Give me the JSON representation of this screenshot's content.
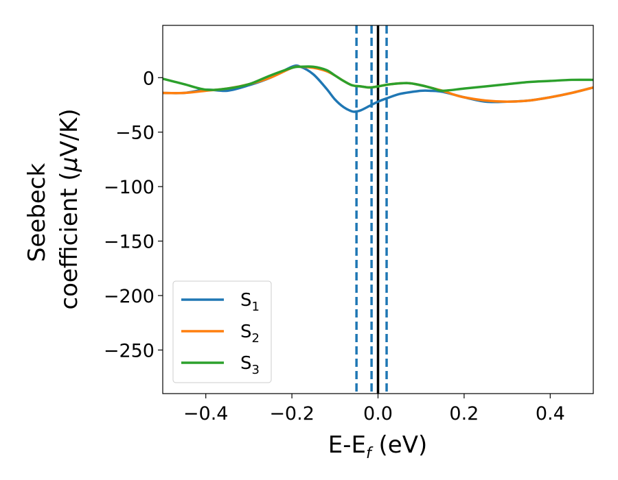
{
  "chart_data": {
    "type": "line",
    "xlabel": "E-E",
    "xlabel_sub": "f",
    "xlabel_unit": " (eV)",
    "ylabel_line1": "Seebeck",
    "ylabel_line2": "coefficient  (",
    "ylabel_mu": "μ",
    "ylabel_unit": "V/K)",
    "xlim": [
      -0.5,
      0.5
    ],
    "ylim": [
      -290,
      48
    ],
    "xticks": [
      -0.4,
      -0.2,
      0.0,
      0.2,
      0.4
    ],
    "xtick_labels": [
      "−0.4",
      "−0.2",
      "0.0",
      "0.2",
      "0.4"
    ],
    "yticks": [
      0,
      -50,
      -100,
      -150,
      -200,
      -250
    ],
    "ytick_labels": [
      "0",
      "−50",
      "−100",
      "−150",
      "−200",
      "−250"
    ],
    "grid": false,
    "legend_position": "lower-left",
    "series": [
      {
        "name": "S",
        "name_sub": "1",
        "color": "#1f77b4",
        "x": [
          -0.5,
          -0.45,
          -0.4,
          -0.35,
          -0.3,
          -0.25,
          -0.2,
          -0.18,
          -0.15,
          -0.12,
          -0.1,
          -0.08,
          -0.06,
          -0.05,
          -0.04,
          -0.02,
          0.0,
          0.02,
          0.05,
          0.08,
          0.1,
          0.12,
          0.15,
          0.2,
          0.25,
          0.3,
          0.35,
          0.4,
          0.45,
          0.5
        ],
        "y": [
          -14,
          -14,
          -11,
          -12,
          -7,
          0,
          10,
          10,
          3,
          -10,
          -20,
          -27,
          -31,
          -31,
          -30,
          -26,
          -22,
          -19,
          -15,
          -13,
          -12,
          -12,
          -13,
          -18,
          -22,
          -22,
          -21,
          -18,
          -14,
          -9
        ]
      },
      {
        "name": "S",
        "name_sub": "2",
        "color": "#ff7f0e",
        "x": [
          -0.5,
          -0.45,
          -0.4,
          -0.35,
          -0.3,
          -0.25,
          -0.2,
          -0.18,
          -0.15,
          -0.12,
          -0.1,
          -0.08,
          -0.06,
          -0.04,
          -0.02,
          0.0,
          0.03,
          0.07,
          0.1,
          0.13,
          0.15,
          0.18,
          0.2,
          0.25,
          0.3,
          0.35,
          0.4,
          0.45,
          0.5
        ],
        "y": [
          -14,
          -14,
          -12,
          -10,
          -6,
          0,
          9,
          10,
          9,
          6,
          2,
          -3,
          -7,
          -8,
          -9,
          -8,
          -6,
          -5,
          -7,
          -10,
          -12,
          -16,
          -18,
          -21,
          -22,
          -21,
          -18,
          -14,
          -9
        ]
      },
      {
        "name": "S",
        "name_sub": "3",
        "color": "#2ca02c",
        "x": [
          -0.5,
          -0.45,
          -0.4,
          -0.35,
          -0.3,
          -0.25,
          -0.2,
          -0.18,
          -0.15,
          -0.12,
          -0.1,
          -0.08,
          -0.06,
          -0.04,
          -0.02,
          0.0,
          0.03,
          0.07,
          0.1,
          0.13,
          0.15,
          0.2,
          0.25,
          0.3,
          0.35,
          0.4,
          0.45,
          0.5
        ],
        "y": [
          -1,
          -6,
          -11,
          -10,
          -6,
          2,
          9,
          10,
          10,
          7,
          2,
          -3,
          -7,
          -8,
          -9,
          -8,
          -6,
          -5,
          -7,
          -10,
          -12,
          -10,
          -8,
          -6,
          -4,
          -3,
          -2,
          -2
        ]
      }
    ],
    "vlines": [
      {
        "x": -0.05,
        "color": "#1f77b4",
        "style": "dashed"
      },
      {
        "x": -0.015,
        "color": "#1f77b4",
        "style": "dashed"
      },
      {
        "x": 0.0,
        "color": "#000000",
        "style": "solid"
      },
      {
        "x": 0.02,
        "color": "#1f77b4",
        "style": "dashed"
      }
    ]
  }
}
